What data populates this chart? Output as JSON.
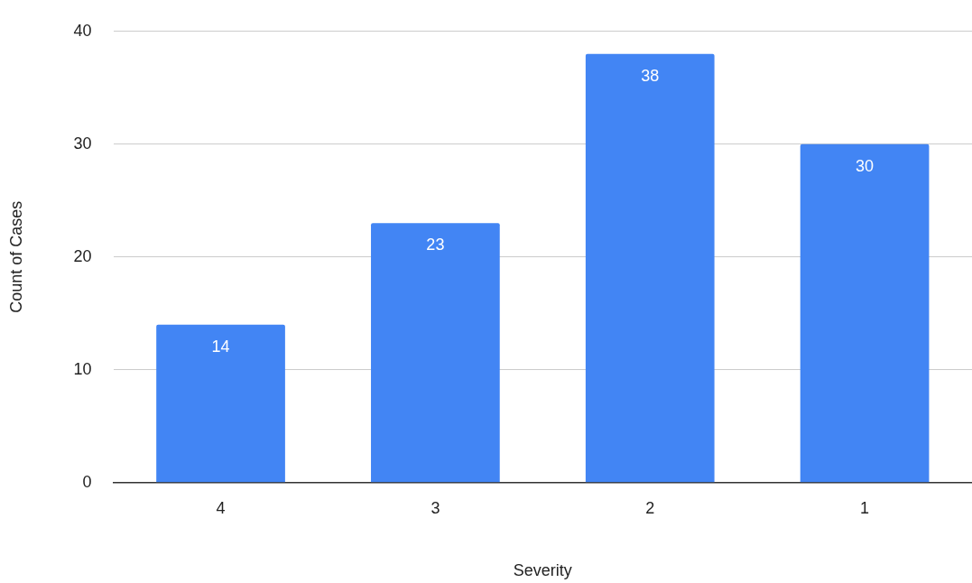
{
  "chart_data": {
    "type": "bar",
    "xlabel": "Severity",
    "ylabel": "Count of Cases",
    "categories": [
      "4",
      "3",
      "2",
      "1"
    ],
    "values": [
      14,
      23,
      38,
      30
    ],
    "color": "#4285f4",
    "ylim": [
      0,
      40
    ],
    "yticks": [
      0,
      10,
      20,
      30,
      40
    ],
    "grid": "y",
    "data_labels": true
  }
}
